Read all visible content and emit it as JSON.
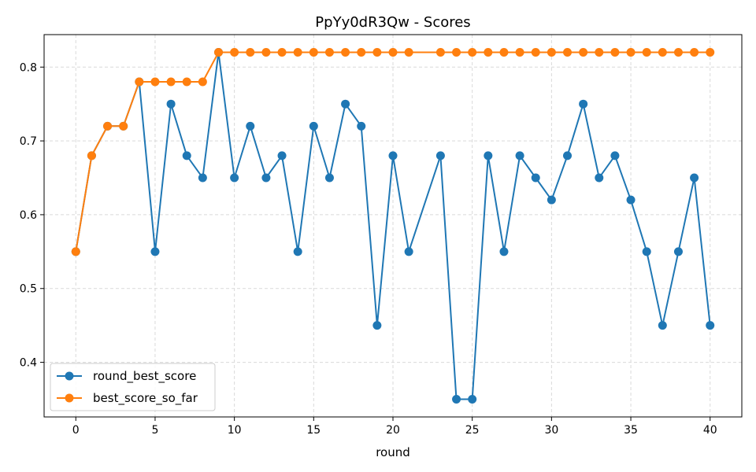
{
  "chart_data": {
    "type": "line",
    "title": "PpYy0dR3Qw - Scores",
    "xlabel": "round",
    "ylabel": "",
    "xlim": [
      -2,
      42
    ],
    "ylim": [
      0.326,
      0.844
    ],
    "xticks": [
      0,
      5,
      10,
      15,
      20,
      25,
      30,
      35,
      40
    ],
    "yticks": [
      0.4,
      0.5,
      0.6,
      0.7,
      0.8
    ],
    "grid": true,
    "legend_position": "lower-left",
    "series": [
      {
        "name": "round_best_score",
        "color": "#1f77b4",
        "x": [
          0,
          1,
          2,
          3,
          4,
          5,
          6,
          7,
          8,
          9,
          10,
          11,
          12,
          13,
          14,
          15,
          16,
          17,
          18,
          19,
          20,
          21,
          23,
          24,
          25,
          26,
          27,
          28,
          29,
          30,
          31,
          32,
          33,
          34,
          35,
          36,
          37,
          38,
          39,
          40
        ],
        "y": [
          0.55,
          0.68,
          0.72,
          0.72,
          0.78,
          0.55,
          0.75,
          0.68,
          0.65,
          0.82,
          0.65,
          0.72,
          0.65,
          0.68,
          0.55,
          0.72,
          0.65,
          0.75,
          0.72,
          0.45,
          0.68,
          0.55,
          0.68,
          0.35,
          0.35,
          0.68,
          0.55,
          0.68,
          0.65,
          0.62,
          0.68,
          0.75,
          0.65,
          0.68,
          0.62,
          0.55,
          0.45,
          0.55,
          0.65,
          0.45
        ]
      },
      {
        "name": "best_score_so_far",
        "color": "#ff7f0e",
        "x": [
          0,
          1,
          2,
          3,
          4,
          5,
          6,
          7,
          8,
          9,
          10,
          11,
          12,
          13,
          14,
          15,
          16,
          17,
          18,
          19,
          20,
          21,
          23,
          24,
          25,
          26,
          27,
          28,
          29,
          30,
          31,
          32,
          33,
          34,
          35,
          36,
          37,
          38,
          39,
          40
        ],
        "y": [
          0.55,
          0.68,
          0.72,
          0.72,
          0.78,
          0.78,
          0.78,
          0.78,
          0.78,
          0.82,
          0.82,
          0.82,
          0.82,
          0.82,
          0.82,
          0.82,
          0.82,
          0.82,
          0.82,
          0.82,
          0.82,
          0.82,
          0.82,
          0.82,
          0.82,
          0.82,
          0.82,
          0.82,
          0.82,
          0.82,
          0.82,
          0.82,
          0.82,
          0.82,
          0.82,
          0.82,
          0.82,
          0.82,
          0.82,
          0.82
        ]
      }
    ]
  }
}
